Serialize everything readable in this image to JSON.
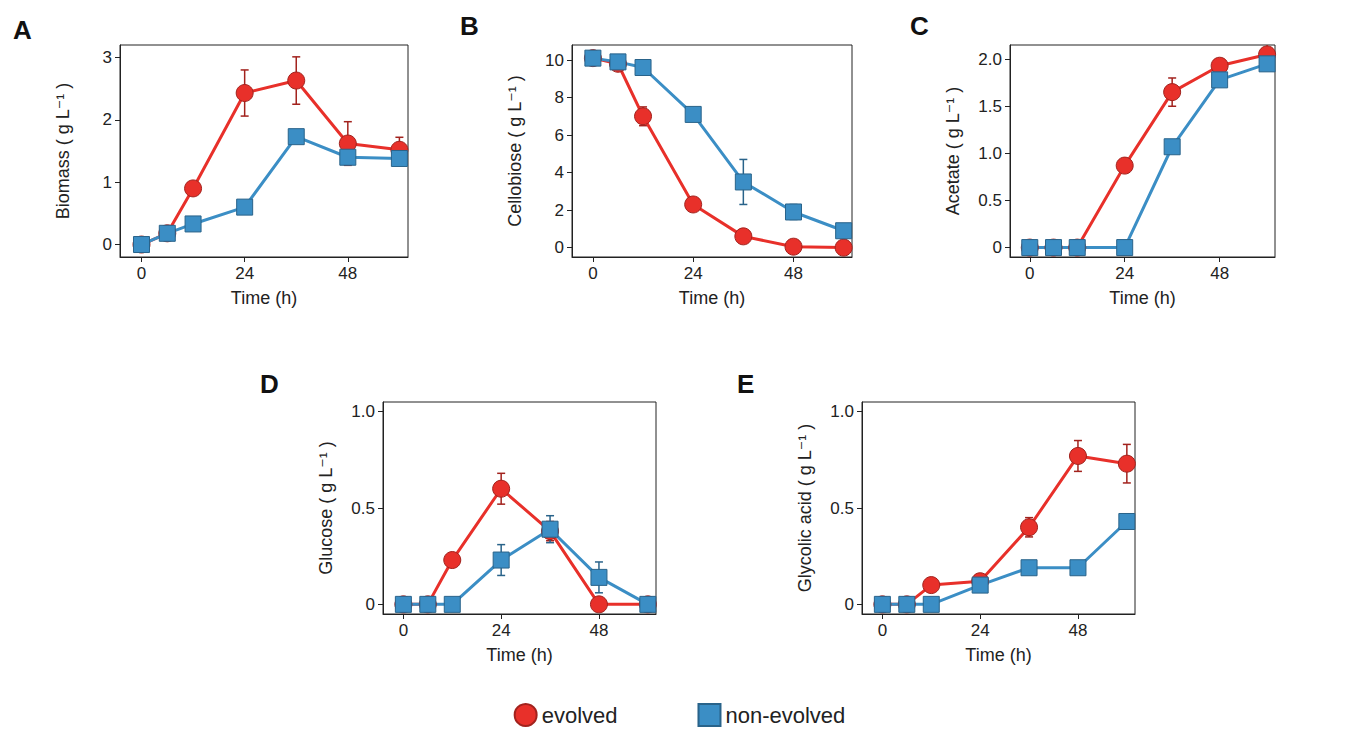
{
  "chart_data": [
    {
      "type": "line",
      "title": "A",
      "x_label": "Time (h)",
      "y_label": "Biomass ( g L⁻¹ )",
      "x": [
        0,
        6,
        12,
        24,
        36,
        48,
        60
      ],
      "xlim": [
        -5,
        62
      ],
      "xticks": [
        0,
        24,
        48
      ],
      "ylim": [
        -0.2,
        3.2
      ],
      "yticks": [
        0,
        1,
        2,
        3
      ],
      "grid": false,
      "legend": "bottom",
      "series": [
        {
          "name": "evolved",
          "color": "#e8302a",
          "marker": "circle",
          "values": [
            0,
            0.18,
            0.9,
            2.43,
            2.63,
            1.62,
            1.52
          ],
          "errors": [
            0,
            0,
            0.05,
            0.37,
            0.38,
            0.35,
            0.2
          ]
        },
        {
          "name": "non-evolved",
          "color": "#3b8ec5",
          "marker": "square",
          "values": [
            0,
            0.18,
            0.33,
            0.6,
            1.73,
            1.4,
            1.38
          ],
          "errors": [
            0,
            0.03,
            0.05,
            0.05,
            0.06,
            0.05,
            0.05
          ]
        }
      ]
    },
    {
      "type": "line",
      "title": "B",
      "x_label": "Time (h)",
      "y_label": "Cellobiose ( g L⁻¹ )",
      "x": [
        0,
        6,
        12,
        24,
        36,
        48,
        60
      ],
      "xlim": [
        -5,
        62
      ],
      "xticks": [
        0,
        24,
        48
      ],
      "ylim": [
        -0.5,
        10.8
      ],
      "yticks": [
        0,
        2,
        4,
        6,
        8,
        10
      ],
      "grid": false,
      "legend": "bottom",
      "series": [
        {
          "name": "evolved",
          "color": "#e8302a",
          "marker": "circle",
          "values": [
            10.1,
            9.8,
            7.0,
            2.3,
            0.6,
            0.05,
            0
          ],
          "errors": [
            0,
            0.2,
            0.5,
            0.2,
            0.1,
            0,
            0
          ]
        },
        {
          "name": "non-evolved",
          "color": "#3b8ec5",
          "marker": "square",
          "values": [
            10.1,
            9.9,
            9.6,
            7.1,
            3.5,
            1.9,
            0.9
          ],
          "errors": [
            0,
            0.1,
            0.2,
            0.2,
            1.2,
            0.4,
            0.2
          ]
        }
      ]
    },
    {
      "type": "line",
      "title": "C",
      "x_label": "Time (h)",
      "y_label": "Acetate ( g L⁻¹ )",
      "x": [
        0,
        6,
        12,
        24,
        36,
        48,
        60
      ],
      "xlim": [
        -5,
        62
      ],
      "xticks": [
        0,
        24,
        48
      ],
      "ylim": [
        -0.1,
        2.15
      ],
      "yticks": [
        0,
        0.5,
        {
          "value": 1,
          "label": "1.0"
        },
        1.5,
        {
          "value": 2,
          "label": "2.0"
        }
      ],
      "grid": false,
      "legend": "bottom",
      "series": [
        {
          "name": "evolved",
          "color": "#e8302a",
          "marker": "circle",
          "values": [
            0,
            0,
            0,
            0.87,
            1.65,
            1.93,
            2.05
          ],
          "errors": [
            0,
            0,
            0,
            0.05,
            0.15,
            0.07,
            0.12
          ]
        },
        {
          "name": "non-evolved",
          "color": "#3b8ec5",
          "marker": "square",
          "values": [
            0,
            0,
            0,
            0,
            1.07,
            1.78,
            1.95
          ],
          "errors": [
            0,
            0,
            0,
            0,
            0.04,
            0.05,
            0.05
          ]
        }
      ]
    },
    {
      "type": "line",
      "title": "D",
      "x_label": "Time (h)",
      "y_label": "Glucose ( g L⁻¹ )",
      "x": [
        0,
        6,
        12,
        24,
        36,
        48,
        60
      ],
      "xlim": [
        -5,
        62
      ],
      "xticks": [
        0,
        24,
        48
      ],
      "ylim": [
        -0.05,
        1.05
      ],
      "yticks": [
        0,
        0.5,
        {
          "value": 1,
          "label": "1.0"
        }
      ],
      "grid": false,
      "legend": "bottom",
      "series": [
        {
          "name": "evolved",
          "color": "#e8302a",
          "marker": "circle",
          "values": [
            0,
            0,
            0.23,
            0.6,
            0.38,
            0,
            0
          ],
          "errors": [
            0,
            0,
            0,
            0.08,
            0.05,
            0,
            0
          ]
        },
        {
          "name": "non-evolved",
          "color": "#3b8ec5",
          "marker": "square",
          "values": [
            0,
            0,
            0,
            0.23,
            0.39,
            0.14,
            0
          ],
          "errors": [
            0,
            0,
            0,
            0.08,
            0.07,
            0.08,
            0
          ]
        }
      ]
    },
    {
      "type": "line",
      "title": "E",
      "x_label": "Time (h)",
      "y_label": "Glycolic acid ( g L⁻¹ )",
      "x": [
        0,
        6,
        12,
        24,
        36,
        48,
        60
      ],
      "xlim": [
        -5,
        62
      ],
      "xticks": [
        0,
        24,
        48
      ],
      "ylim": [
        -0.05,
        1.05
      ],
      "yticks": [
        0,
        0.5,
        {
          "value": 1,
          "label": "1.0"
        }
      ],
      "grid": false,
      "legend": "bottom",
      "series": [
        {
          "name": "evolved",
          "color": "#e8302a",
          "marker": "circle",
          "values": [
            0,
            0,
            0.1,
            0.12,
            0.4,
            0.77,
            0.73
          ],
          "errors": [
            0,
            0,
            0.03,
            0.02,
            0.05,
            0.08,
            0.1
          ]
        },
        {
          "name": "non-evolved",
          "color": "#3b8ec5",
          "marker": "square",
          "values": [
            0,
            0,
            0,
            0.1,
            0.19,
            0.19,
            0.43
          ],
          "errors": [
            0,
            0,
            0,
            0.02,
            0.02,
            0.02,
            0.03
          ]
        }
      ]
    }
  ]
}
